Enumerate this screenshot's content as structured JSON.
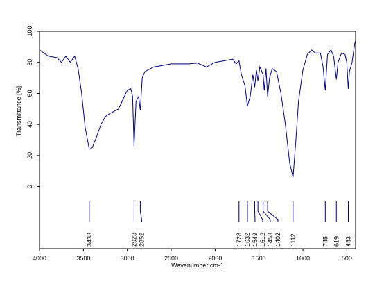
{
  "chart_data": {
    "type": "line",
    "x_label": "Wavenumber cm-1",
    "y_label": "Transmittance [%]",
    "x": [
      4000,
      3900,
      3800,
      3750,
      3700,
      3650,
      3600,
      3560,
      3520,
      3480,
      3433,
      3400,
      3350,
      3300,
      3250,
      3200,
      3100,
      3050,
      3000,
      2960,
      2940,
      2923,
      2900,
      2870,
      2852,
      2830,
      2800,
      2700,
      2600,
      2500,
      2300,
      2200,
      2100,
      2000,
      1900,
      1800,
      1760,
      1728,
      1700,
      1660,
      1632,
      1600,
      1570,
      1549,
      1530,
      1512,
      1490,
      1453,
      1440,
      1420,
      1402,
      1380,
      1350,
      1300,
      1250,
      1200,
      1150,
      1112,
      1080,
      1050,
      1000,
      950,
      900,
      860,
      800,
      770,
      745,
      720,
      680,
      650,
      619,
      600,
      560,
      520,
      500,
      483,
      470,
      440,
      410,
      400
    ],
    "series": [
      {
        "color": "#000080",
        "values": [
          88,
          84,
          83,
          80,
          84,
          80,
          84,
          76,
          60,
          38,
          24,
          25,
          32,
          40,
          45,
          47,
          50,
          56,
          62,
          63,
          58,
          26,
          55,
          58,
          49,
          70,
          74,
          77,
          78,
          79,
          79,
          79.5,
          77,
          80,
          81,
          82,
          79,
          81,
          72,
          65,
          52,
          58,
          72,
          64,
          75,
          68,
          77,
          72,
          62,
          76,
          58,
          70,
          76,
          74,
          60,
          40,
          15,
          6,
          30,
          55,
          75,
          85,
          88,
          86,
          86,
          77,
          62,
          85,
          88,
          84,
          69,
          80,
          86,
          85,
          80,
          63,
          74,
          80,
          92,
          94
        ]
      }
    ],
    "peak_labels": [
      3433,
      2923,
      2852,
      1728,
      1632,
      1549,
      1512,
      1453,
      1402,
      1112,
      745,
      619,
      483
    ],
    "xlim": [
      4000,
      400
    ],
    "ylim": [
      -40,
      100
    ],
    "xticks": [
      4000,
      3500,
      3000,
      2500,
      2000,
      1500,
      1000,
      500
    ],
    "yticks": [
      0,
      20,
      40,
      60,
      80,
      100
    ]
  }
}
